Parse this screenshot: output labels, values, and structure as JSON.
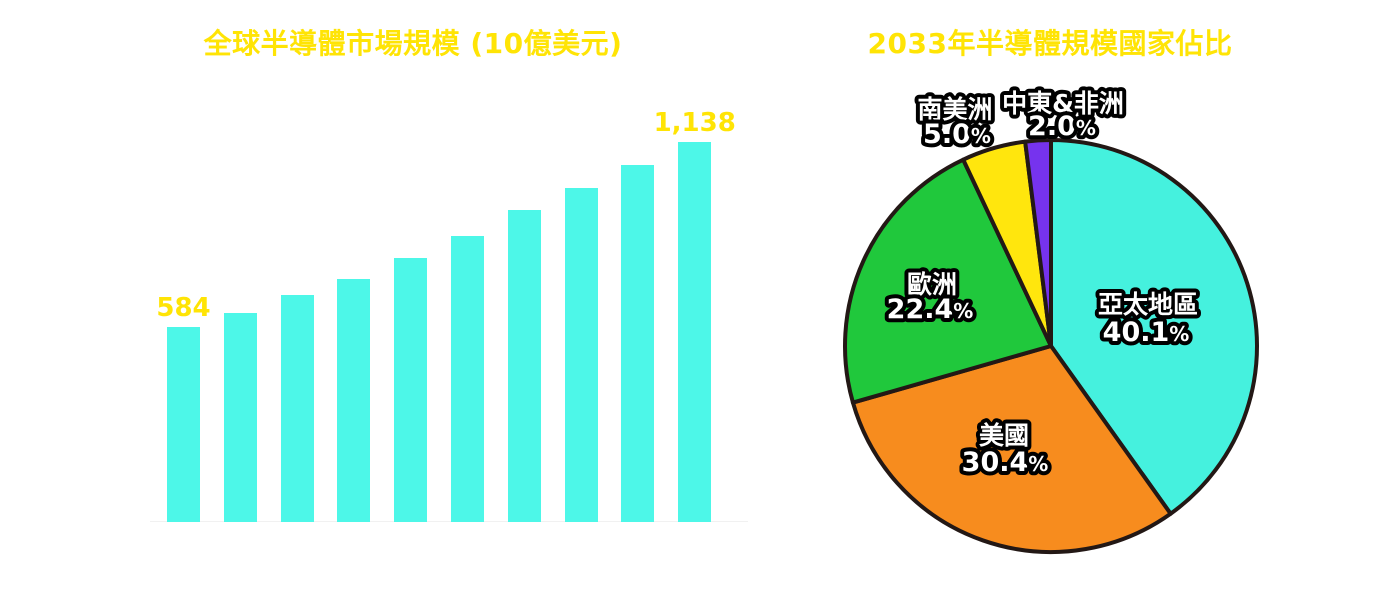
{
  "page": {
    "background_color": "#FFFFFF",
    "accent_yellow": "#FFE405"
  },
  "chart_data": [
    {
      "type": "bar",
      "title": "全球半導體市場規模 (10億美元)",
      "title_color": "#FFE405",
      "values": [
        584,
        627,
        680,
        729,
        790,
        856,
        933,
        1000,
        1070,
        1138
      ],
      "bar_labels": [
        "584",
        "",
        "",
        "",
        "",
        "",
        "",
        "",
        "",
        "1,138"
      ],
      "ylim": [
        0,
        1138
      ],
      "bar_color": "#4DF7E8",
      "value_label_color": "#FFE405",
      "grid": false,
      "axis_tick_labels": [],
      "legend": "none"
    },
    {
      "type": "pie",
      "title": "2033年半導體規模國家佔比",
      "title_color": "#FFE405",
      "direction": "clockwise",
      "start_angle_deg": 0,
      "outline_color": "#231815",
      "outline_width": 4,
      "label_text_color": "#FFFFFF",
      "label_stroke_color": "#000000",
      "percent_suffix": "%",
      "slices": [
        {
          "label": "亞太地區",
          "value": 40.1,
          "display": "40.1",
          "color": "#45F1DE",
          "label_position": "inside"
        },
        {
          "label": "美國",
          "value": 30.4,
          "display": "30.4",
          "color": "#F78C1E",
          "label_position": "inside"
        },
        {
          "label": "歐洲",
          "value": 22.4,
          "display": "22.4",
          "color": "#20C83C",
          "label_position": "inside"
        },
        {
          "label": "南美洲",
          "value": 5.0,
          "display": "5.0",
          "color": "#FFE60D",
          "label_position": "outside"
        },
        {
          "label": "中東&非洲",
          "value": 2.0,
          "display": "2.0",
          "color": "#7633EE",
          "label_position": "outside"
        }
      ]
    }
  ]
}
